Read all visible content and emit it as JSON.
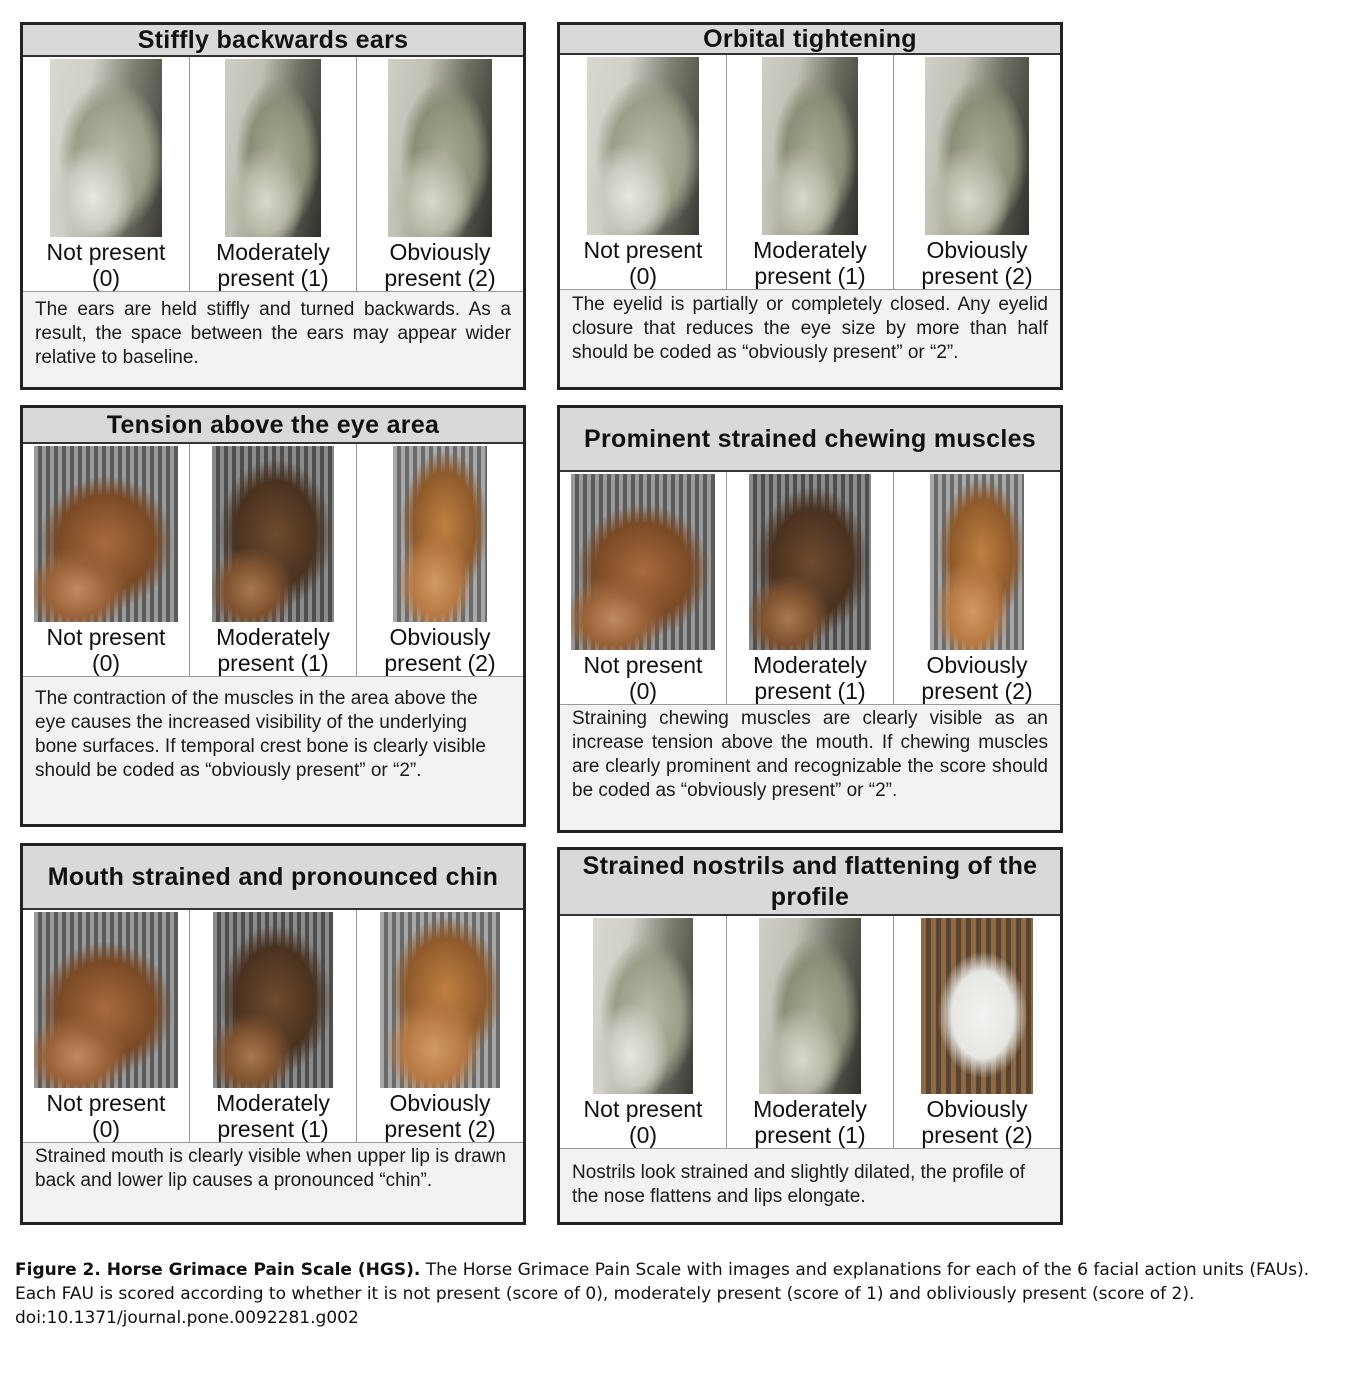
{
  "panels": [
    {
      "title": "Stiffly backwards ears",
      "labels": [
        [
          "Not present",
          "(0)"
        ],
        [
          "Moderately",
          "present (1)"
        ],
        [
          "Obviously",
          "present (2)"
        ]
      ],
      "description": "The ears are held stiffly and turned backwards. As a result, the space between the ears may appear wider relative to baseline."
    },
    {
      "title": "Orbital tightening",
      "labels": [
        [
          "Not present",
          "(0)"
        ],
        [
          "Moderately",
          "present (1)"
        ],
        [
          "Obviously",
          "present (2)"
        ]
      ],
      "description": "The eyelid is partially or completely closed. Any eyelid closure that reduces the eye size by more than half should be coded as “obviously present” or “2”."
    },
    {
      "title": "Tension above the eye area",
      "labels": [
        [
          "Not present",
          "(0)"
        ],
        [
          "Moderately",
          "present (1)"
        ],
        [
          "Obviously",
          "present (2)"
        ]
      ],
      "description": "The contraction of the muscles in the area above the eye causes the increased visibility of the underlying bone surfaces. If temporal crest bone is clearly visible should be coded as “obviously present” or “2”."
    },
    {
      "title": "Prominent strained chewing muscles",
      "labels": [
        [
          "Not present",
          "(0)"
        ],
        [
          "Moderately",
          "present (1)"
        ],
        [
          "Obviously",
          "present (2)"
        ]
      ],
      "description": "Straining chewing muscles are clearly visible as an increase tension above the mouth. If chewing muscles are clearly prominent and recognizable the score should be coded as “obviously present” or “2”."
    },
    {
      "title": "Mouth strained and pronounced chin",
      "labels": [
        [
          "Not present",
          "(0)"
        ],
        [
          "Moderately",
          "present (1)"
        ],
        [
          "Obviously",
          "present (2)"
        ]
      ],
      "description": "Strained mouth is clearly visible when upper lip is drawn back and lower lip causes a pronounced “chin”."
    },
    {
      "title": "Strained nostrils and flattening of the profile",
      "labels": [
        [
          "Not present",
          "(0)"
        ],
        [
          "Moderately",
          "present (1)"
        ],
        [
          "Obviously",
          "present (2)"
        ]
      ],
      "description": "Nostrils look strained and slightly dilated, the profile of the nose flattens and lips elongate."
    }
  ],
  "caption": {
    "title": "Figure 2. Horse Grimace Pain Scale (HGS).",
    "text": " The Horse Grimace Pain Scale with images and explanations for each of the 6 facial action units (FAUs). Each FAU is scored according to whether it is not present (score of 0), moderately present (score of 1) and obliviously present (score of 2).",
    "doi": "doi:10.1371/journal.pone.0092281.g002"
  }
}
